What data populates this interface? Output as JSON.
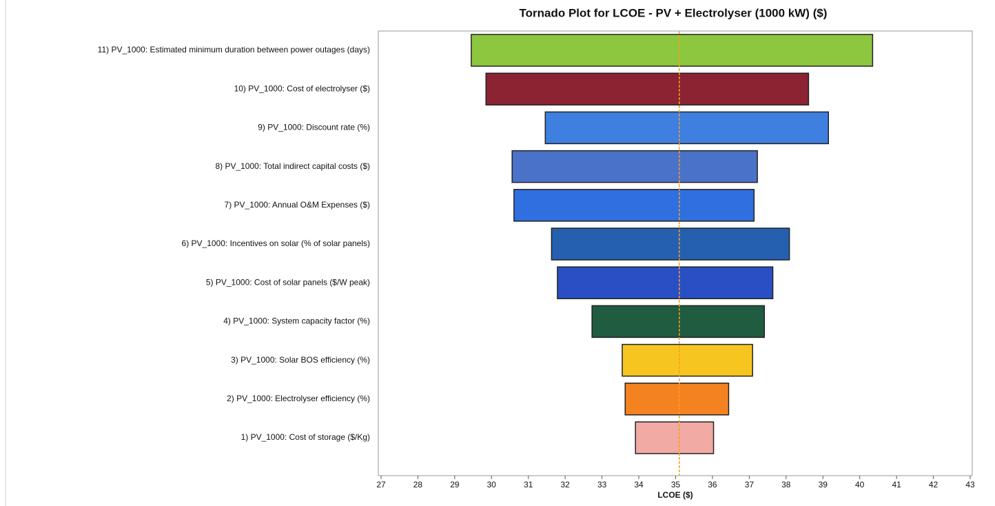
{
  "chart_data": {
    "type": "tornado",
    "title": "Tornado Plot for LCOE - PV + Electrolyser (1000 kW) ($)",
    "x_label": "LCOE ($)",
    "categories": [
      "11) PV_1000: Estimated minimum duration between power outages (days)",
      "10) PV_1000: Cost of electrolyser ($)",
      "9) PV_1000: Discount rate (%)",
      "8) PV_1000: Total indirect capital costs ($)",
      "7) PV_1000: Annual O&M Expenses ($)",
      "6) PV_1000: Incentives on solar (% of solar panels)",
      "5) PV_1000: Cost of solar panels ($/W peak)",
      "4) PV_1000: System capacity factor (%)",
      "3) PV_1000: Solar BOS efficiency (%)",
      "2) PV_1000: Electrolyser efficiency (%)",
      "1) PV_1000: Cost of storage ($/Kg)"
    ],
    "low": [
      29.45,
      29.85,
      31.46,
      30.56,
      30.61,
      31.63,
      31.79,
      32.73,
      33.55,
      33.63,
      33.91
    ],
    "high": [
      40.35,
      38.61,
      39.15,
      37.22,
      37.13,
      38.09,
      37.64,
      37.41,
      37.09,
      36.44,
      36.03
    ],
    "colors": [
      "#8dc63f",
      "#8b2332",
      "#3e7fe0",
      "#4a72c9",
      "#2f6fe0",
      "#2560b0",
      "#2a4fc4",
      "#1f5c40",
      "#f7c520",
      "#f58220",
      "#f2aaa4"
    ],
    "base": 35.1,
    "base_color": "#f5a020",
    "xlim": [
      27,
      43
    ],
    "xticks": [
      27,
      28,
      29,
      30,
      31,
      32,
      33,
      34,
      35,
      36,
      37,
      38,
      39,
      40,
      41,
      42,
      43
    ]
  }
}
